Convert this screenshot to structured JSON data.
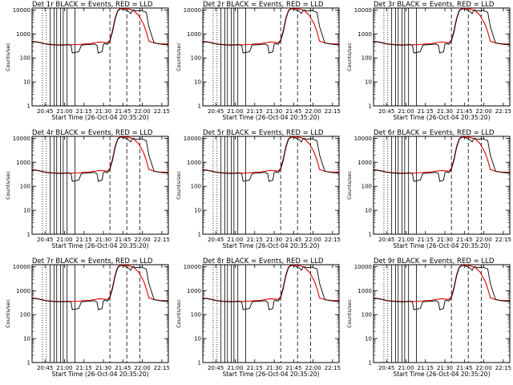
{
  "figure": {
    "background": "#ffffff",
    "event_color": "#000000",
    "lld_color": "#e00000"
  },
  "chart_data": [
    {
      "type": "line",
      "title": "Det 1r  BLACK = Events, RED = LLD"
    },
    {
      "type": "line",
      "title": "Det 2r  BLACK = Events, RED = LLD"
    },
    {
      "type": "line",
      "title": "Det 3r  BLACK = Events, RED = LLD"
    },
    {
      "type": "line",
      "title": "Det 4r  BLACK = Events, RED = LLD"
    },
    {
      "type": "line",
      "title": "Det 5r  BLACK = Events, RED = LLD"
    },
    {
      "type": "line",
      "title": "Det 6r  BLACK = Events, RED = LLD"
    },
    {
      "type": "line",
      "title": "Det 7r  BLACK = Events, RED = LLD"
    },
    {
      "type": "line",
      "title": "Det 8r  BLACK = Events, RED = LLD"
    },
    {
      "type": "line",
      "title": "Det 9r  BLACK = Events, RED = LLD"
    }
  ],
  "shared": {
    "xlabel": "Start Time (26-Oct-04 20:35:20)",
    "ylabel": "Counts/sec",
    "xticks": [
      "20:45",
      "21:00",
      "21:15",
      "21:30",
      "21:45",
      "22:00",
      "22:15"
    ],
    "xtick_minutes": [
      10,
      25,
      40,
      55,
      70,
      85,
      100
    ],
    "xlim_minutes": [
      0,
      105
    ],
    "ylim": [
      1,
      12000
    ],
    "yscale": "log",
    "yticks": [
      "1",
      "10",
      "100",
      "1000",
      "10000"
    ],
    "ytick_values": [
      1,
      10,
      100,
      1000,
      10000
    ],
    "dotted_lines_minutes": [
      8,
      11
    ],
    "solid_lines_minutes": [
      14,
      17,
      19,
      22,
      24,
      27,
      33
    ],
    "dashed_lines_minutes": [
      60,
      73,
      83
    ],
    "series": [
      {
        "name": "Events",
        "x": [
          0,
          2,
          6,
          10,
          16,
          22,
          26,
          28,
          30,
          31,
          36,
          38,
          40,
          44,
          48,
          50,
          51,
          54,
          55,
          56,
          57,
          58,
          60,
          62,
          64,
          66,
          68,
          70,
          72,
          74,
          76,
          77,
          78,
          80,
          84,
          88,
          90,
          94,
          98,
          102,
          105
        ],
        "y": [
          450,
          470,
          430,
          380,
          350,
          340,
          345,
          360,
          330,
          160,
          180,
          340,
          350,
          360,
          380,
          330,
          160,
          180,
          370,
          400,
          380,
          360,
          500,
          1200,
          4000,
          9000,
          11000,
          11000,
          10000,
          9000,
          7000,
          9000,
          10000,
          9000,
          9500,
          8000,
          2000,
          420,
          380,
          360,
          350
        ]
      },
      {
        "name": "LLD",
        "x": [
          0,
          2,
          6,
          10,
          16,
          22,
          26,
          30,
          36,
          40,
          44,
          48,
          52,
          56,
          58,
          60,
          62,
          64,
          66,
          68,
          70,
          74,
          78,
          82,
          86,
          88,
          90,
          94,
          98,
          102,
          105
        ],
        "y": [
          460,
          480,
          440,
          390,
          360,
          350,
          355,
          350,
          360,
          380,
          390,
          420,
          460,
          440,
          420,
          560,
          1400,
          4500,
          9500,
          11500,
          11500,
          11000,
          9500,
          6000,
          2500,
          1200,
          500,
          420,
          390,
          380,
          370
        ]
      }
    ]
  }
}
